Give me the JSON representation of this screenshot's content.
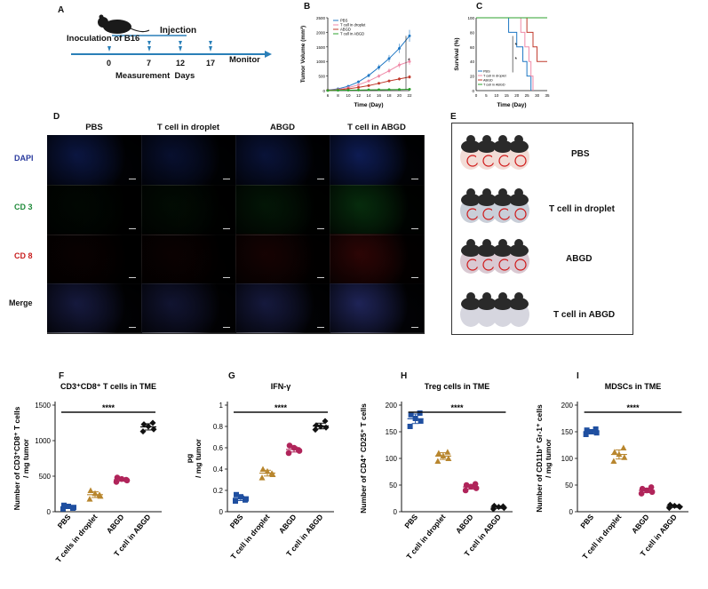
{
  "panels": {
    "A": {
      "letter": "A",
      "inoculation": "Inoculation of B16",
      "injection": "Injection",
      "days": [
        "0",
        "7",
        "12",
        "17"
      ],
      "measurement": "Measurement  Days",
      "monitor": "Monitor"
    },
    "B": {
      "letter": "B"
    },
    "C": {
      "letter": "C"
    },
    "D": {
      "letter": "D",
      "columns": [
        "PBS",
        "T cell in droplet",
        "ABGD",
        "T cell in ABGD"
      ],
      "rows": [
        "DAPI",
        "CD 3",
        "CD 8",
        "Merge"
      ],
      "row_colors": [
        "#2a3b9e",
        "#1f8a3a",
        "#c81e1e",
        "#111111"
      ]
    },
    "E": {
      "letter": "E",
      "groups": [
        "PBS",
        "T cell in droplet",
        "ABGD",
        "T cell in ABGD"
      ]
    },
    "F": {
      "letter": "F"
    },
    "G": {
      "letter": "G"
    },
    "H": {
      "letter": "H"
    },
    "I": {
      "letter": "I"
    }
  },
  "chart_data": [
    {
      "panel": "B",
      "type": "line",
      "title": "",
      "xlabel": "Time (Day)",
      "ylabel": "Tumor Volume (mm³)",
      "x": [
        6,
        8,
        10,
        12,
        14,
        16,
        18,
        20,
        22
      ],
      "xlim": [
        6,
        22
      ],
      "ylim": [
        0,
        2500
      ],
      "yticks": [
        0,
        500,
        1000,
        1500,
        2000,
        2500
      ],
      "series": [
        {
          "name": "PBS",
          "color": "#1f77c4",
          "values": [
            20,
            60,
            150,
            300,
            520,
            800,
            1100,
            1450,
            1880
          ]
        },
        {
          "name": "T cell in droplet",
          "color": "#f08aa8",
          "values": [
            15,
            40,
            100,
            200,
            330,
            500,
            680,
            880,
            1000
          ]
        },
        {
          "name": "ABGD",
          "color": "#c0392b",
          "values": [
            10,
            25,
            60,
            110,
            170,
            250,
            330,
            400,
            470
          ]
        },
        {
          "name": "T cell in ABGD",
          "color": "#2ca02c",
          "values": [
            5,
            10,
            15,
            20,
            25,
            30,
            35,
            40,
            45
          ]
        }
      ],
      "annotation": "*"
    },
    {
      "panel": "C",
      "type": "line",
      "title": "",
      "xlabel": "Time (Day)",
      "ylabel": "Survival (%)",
      "xlim": [
        0,
        35
      ],
      "ylim": [
        0,
        100
      ],
      "xticks": [
        0,
        5,
        10,
        15,
        20,
        25,
        30,
        35
      ],
      "yticks": [
        0,
        20,
        40,
        60,
        80,
        100
      ],
      "series": [
        {
          "name": "PBS",
          "color": "#1f77c4",
          "steps": [
            [
              0,
              100
            ],
            [
              16,
              100
            ],
            [
              16,
              80
            ],
            [
              20,
              80
            ],
            [
              20,
              60
            ],
            [
              23,
              60
            ],
            [
              23,
              40
            ],
            [
              25,
              40
            ],
            [
              25,
              20
            ],
            [
              27,
              20
            ],
            [
              27,
              0
            ]
          ]
        },
        {
          "name": "T cell in droplet",
          "color": "#f08aa8",
          "steps": [
            [
              0,
              100
            ],
            [
              22,
              100
            ],
            [
              22,
              80
            ],
            [
              24,
              80
            ],
            [
              24,
              60
            ],
            [
              26,
              60
            ],
            [
              26,
              40
            ],
            [
              27,
              40
            ],
            [
              27,
              20
            ],
            [
              28,
              20
            ],
            [
              28,
              0
            ]
          ]
        },
        {
          "name": "ABGD",
          "color": "#c0392b",
          "steps": [
            [
              0,
              100
            ],
            [
              25,
              100
            ],
            [
              25,
              80
            ],
            [
              28,
              80
            ],
            [
              28,
              60
            ],
            [
              30,
              60
            ],
            [
              30,
              40
            ],
            [
              35,
              40
            ]
          ]
        },
        {
          "name": "T cell in ABGD",
          "color": "#2ca02c",
          "steps": [
            [
              0,
              100
            ],
            [
              35,
              100
            ]
          ]
        }
      ],
      "annotations": [
        "*",
        "*"
      ]
    },
    {
      "panel": "F",
      "type": "scatter",
      "title": "CD3⁺CD8⁺ T cells in TME",
      "ylabel": "Number of CD3⁺CD8⁺ T cells / mg tumor",
      "categories": [
        "PBS",
        "T cells in droplet",
        "ABGD",
        "T cell in ABGD"
      ],
      "ylim": [
        0,
        1500
      ],
      "yticks": [
        0,
        500,
        1000,
        1500
      ],
      "colors": [
        "#1f4fa0",
        "#b8862e",
        "#b0245a",
        "#111111"
      ],
      "values": [
        [
          40,
          60,
          75,
          90,
          50
        ],
        [
          180,
          220,
          260,
          300,
          240
        ],
        [
          420,
          440,
          460,
          480,
          450
        ],
        [
          1130,
          1160,
          1200,
          1230,
          1250
        ]
      ],
      "significance": "****"
    },
    {
      "panel": "G",
      "type": "scatter",
      "title": "IFN-γ",
      "ylabel": "pg / mg tumor",
      "categories": [
        "PBS",
        "T cell in droplet",
        "ABGD",
        "T cell in ABGD"
      ],
      "ylim": [
        0,
        1.0
      ],
      "yticks": [
        0.0,
        0.2,
        0.4,
        0.6,
        0.8,
        1.0
      ],
      "colors": [
        "#1f4fa0",
        "#b8862e",
        "#b0245a",
        "#111111"
      ],
      "values": [
        [
          0.1,
          0.12,
          0.14,
          0.16,
          0.11
        ],
        [
          0.32,
          0.35,
          0.38,
          0.4,
          0.36
        ],
        [
          0.55,
          0.57,
          0.6,
          0.62,
          0.58
        ],
        [
          0.77,
          0.79,
          0.8,
          0.81,
          0.85
        ]
      ],
      "significance": "****"
    },
    {
      "panel": "H",
      "type": "scatter",
      "title": "Treg cells in TME",
      "ylabel": "Number of CD4⁺ CD25⁺ T cells",
      "categories": [
        "PBS",
        "T cell in droplet",
        "ABGD",
        "T cell in ABGD"
      ],
      "ylim": [
        0,
        200
      ],
      "yticks": [
        0,
        50,
        100,
        150,
        200
      ],
      "colors": [
        "#1f4fa0",
        "#b8862e",
        "#b0245a",
        "#111111"
      ],
      "values": [
        [
          160,
          170,
          175,
          182,
          185
        ],
        [
          95,
          100,
          105,
          110,
          112
        ],
        [
          40,
          44,
          47,
          50,
          52
        ],
        [
          5,
          7,
          9,
          11,
          10
        ]
      ],
      "significance": "****"
    },
    {
      "panel": "I",
      "type": "scatter",
      "title": "MDSCs in TME",
      "ylabel": "Number of CD11b⁺ Gr-1⁺ cells / mg tumor",
      "categories": [
        "PBS",
        "T cell in droplet",
        "ABGD",
        "T cell in ABGD"
      ],
      "ylim": [
        0,
        200
      ],
      "yticks": [
        0,
        50,
        100,
        150,
        200
      ],
      "colors": [
        "#1f4fa0",
        "#b8862e",
        "#b0245a",
        "#111111"
      ],
      "values": [
        [
          145,
          148,
          150,
          153,
          155
        ],
        [
          95,
          102,
          108,
          112,
          120
        ],
        [
          34,
          37,
          40,
          43,
          46
        ],
        [
          7,
          9,
          11,
          13,
          10
        ]
      ],
      "significance": "****"
    }
  ]
}
